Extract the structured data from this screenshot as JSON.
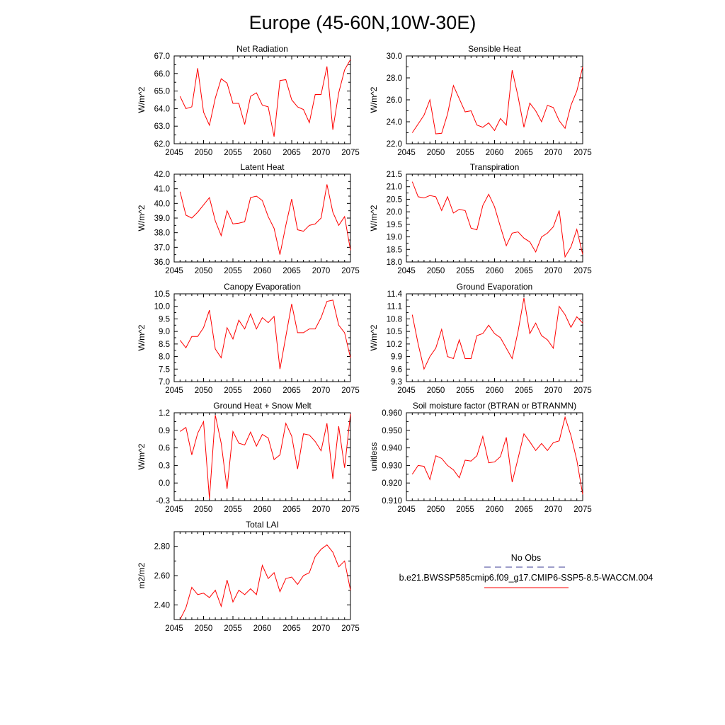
{
  "figure_title": "Europe (45-60N,10W-30E)",
  "colors": {
    "series": "#ff0000",
    "obs_line": "#3c3c96",
    "axis": "#000000"
  },
  "legend": {
    "entries": [
      {
        "label": "No Obs",
        "style": "dashed",
        "color": "#3c3c96"
      },
      {
        "label": "b.e21.BWSSP585cmip6.f09_g17.CMIP6-SSP5-8.5-WACCM.004",
        "style": "solid",
        "color": "#ff0000"
      }
    ]
  },
  "chart_data": [
    {
      "type": "line",
      "title": "Net Radiation",
      "ylabel": "W/m^2",
      "xlim": [
        2045,
        2075
      ],
      "ylim": [
        62.0,
        67.0
      ],
      "yticks": [
        "62.0",
        "63.0",
        "64.0",
        "65.0",
        "66.0",
        "67.0"
      ],
      "xticks": [
        "2045",
        "2050",
        "2055",
        "2060",
        "2065",
        "2070",
        "2075"
      ],
      "x": [
        2046,
        2047,
        2048,
        2049,
        2050,
        2051,
        2052,
        2053,
        2054,
        2055,
        2056,
        2057,
        2058,
        2059,
        2060,
        2061,
        2062,
        2063,
        2064,
        2065,
        2066,
        2067,
        2068,
        2069,
        2070,
        2071,
        2072,
        2073,
        2074,
        2075
      ],
      "series": [
        {
          "values": [
            64.7,
            64.0,
            64.1,
            66.3,
            63.8,
            63.05,
            64.6,
            65.7,
            65.45,
            64.3,
            64.3,
            63.1,
            64.7,
            64.9,
            64.2,
            64.1,
            62.4,
            65.6,
            65.65,
            64.5,
            64.1,
            63.95,
            63.2,
            64.8,
            64.8,
            66.4,
            62.8,
            64.9,
            66.2,
            66.8
          ]
        }
      ]
    },
    {
      "type": "line",
      "title": "Sensible Heat",
      "ylabel": "W/m^2",
      "xlim": [
        2045,
        2075
      ],
      "ylim": [
        22.0,
        30.0
      ],
      "yticks": [
        "22.0",
        "24.0",
        "26.0",
        "28.0",
        "30.0"
      ],
      "xticks": [
        "2045",
        "2050",
        "2055",
        "2060",
        "2065",
        "2070",
        "2075"
      ],
      "x": [
        2046,
        2047,
        2048,
        2049,
        2050,
        2051,
        2052,
        2053,
        2054,
        2055,
        2056,
        2057,
        2058,
        2059,
        2060,
        2061,
        2062,
        2063,
        2064,
        2065,
        2066,
        2067,
        2068,
        2069,
        2070,
        2071,
        2072,
        2073,
        2074,
        2075
      ],
      "series": [
        {
          "values": [
            23.0,
            23.8,
            24.6,
            26.0,
            22.9,
            22.95,
            24.7,
            27.3,
            26.1,
            24.9,
            25.0,
            23.7,
            23.5,
            23.9,
            23.2,
            24.3,
            23.7,
            28.7,
            26.3,
            23.5,
            25.7,
            25.0,
            24.0,
            25.5,
            25.3,
            24.1,
            23.4,
            25.5,
            26.8,
            29.0
          ]
        }
      ]
    },
    {
      "type": "line",
      "title": "Latent Heat",
      "ylabel": "W/m^2",
      "xlim": [
        2045,
        2075
      ],
      "ylim": [
        36.0,
        42.0
      ],
      "yticks": [
        "36.0",
        "37.0",
        "38.0",
        "39.0",
        "40.0",
        "41.0",
        "42.0"
      ],
      "xticks": [
        "2045",
        "2050",
        "2055",
        "2060",
        "2065",
        "2070",
        "2075"
      ],
      "x": [
        2046,
        2047,
        2048,
        2049,
        2050,
        2051,
        2052,
        2053,
        2054,
        2055,
        2056,
        2057,
        2058,
        2059,
        2060,
        2061,
        2062,
        2063,
        2064,
        2065,
        2066,
        2067,
        2068,
        2069,
        2070,
        2071,
        2072,
        2073,
        2074,
        2075
      ],
      "series": [
        {
          "values": [
            40.8,
            39.2,
            39.0,
            39.4,
            39.9,
            40.4,
            38.8,
            37.8,
            39.5,
            38.6,
            38.65,
            38.75,
            40.4,
            40.5,
            40.2,
            39.1,
            38.3,
            36.5,
            38.5,
            40.3,
            38.2,
            38.1,
            38.5,
            38.6,
            39.0,
            41.3,
            39.4,
            38.5,
            39.1,
            36.8
          ]
        }
      ]
    },
    {
      "type": "line",
      "title": "Transpiration",
      "ylabel": "W/m^2",
      "xlim": [
        2045,
        2075
      ],
      "ylim": [
        18.0,
        21.5
      ],
      "yticks": [
        "18.0",
        "18.5",
        "19.0",
        "19.5",
        "20.0",
        "20.5",
        "21.0",
        "21.5"
      ],
      "xticks": [
        "2045",
        "2050",
        "2055",
        "2060",
        "2065",
        "2070",
        "2075"
      ],
      "x": [
        2046,
        2047,
        2048,
        2049,
        2050,
        2051,
        2052,
        2053,
        2054,
        2055,
        2056,
        2057,
        2058,
        2059,
        2060,
        2061,
        2062,
        2063,
        2064,
        2065,
        2066,
        2067,
        2068,
        2069,
        2070,
        2071,
        2072,
        2073,
        2074,
        2075
      ],
      "series": [
        {
          "values": [
            21.2,
            20.6,
            20.55,
            20.65,
            20.6,
            20.05,
            20.6,
            19.95,
            20.1,
            20.05,
            19.35,
            19.28,
            20.25,
            20.7,
            20.2,
            19.4,
            18.65,
            19.15,
            19.2,
            18.95,
            18.8,
            18.4,
            19.0,
            19.15,
            19.4,
            20.05,
            18.2,
            18.6,
            19.3,
            18.3
          ]
        }
      ]
    },
    {
      "type": "line",
      "title": "Canopy Evaporation",
      "ylabel": "W/m^2",
      "xlim": [
        2045,
        2075
      ],
      "ylim": [
        7.0,
        10.5
      ],
      "yticks": [
        "7.0",
        "7.5",
        "8.0",
        "8.5",
        "9.0",
        "9.5",
        "10.0",
        "10.5"
      ],
      "xticks": [
        "2045",
        "2050",
        "2055",
        "2060",
        "2065",
        "2070",
        "2075"
      ],
      "x": [
        2046,
        2047,
        2048,
        2049,
        2050,
        2051,
        2052,
        2053,
        2054,
        2055,
        2056,
        2057,
        2058,
        2059,
        2060,
        2061,
        2062,
        2063,
        2064,
        2065,
        2066,
        2067,
        2068,
        2069,
        2070,
        2071,
        2072,
        2073,
        2074,
        2075
      ],
      "series": [
        {
          "values": [
            8.65,
            8.35,
            8.8,
            8.8,
            9.15,
            9.85,
            8.3,
            7.95,
            9.15,
            8.7,
            9.45,
            9.1,
            9.7,
            9.1,
            9.55,
            9.35,
            9.6,
            7.5,
            8.8,
            10.1,
            8.95,
            8.95,
            9.1,
            9.1,
            9.55,
            10.2,
            10.25,
            9.25,
            8.95,
            7.95
          ]
        }
      ]
    },
    {
      "type": "line",
      "title": "Ground Evaporation",
      "ylabel": "W/m^2",
      "xlim": [
        2045,
        2075
      ],
      "ylim": [
        9.3,
        11.4
      ],
      "yticks": [
        "9.3",
        "9.6",
        "9.9",
        "10.2",
        "10.5",
        "10.8",
        "11.1",
        "11.4"
      ],
      "xticks": [
        "2045",
        "2050",
        "2055",
        "2060",
        "2065",
        "2070",
        "2075"
      ],
      "x": [
        2046,
        2047,
        2048,
        2049,
        2050,
        2051,
        2052,
        2053,
        2054,
        2055,
        2056,
        2057,
        2058,
        2059,
        2060,
        2061,
        2062,
        2063,
        2064,
        2065,
        2066,
        2067,
        2068,
        2069,
        2070,
        2071,
        2072,
        2073,
        2074,
        2075
      ],
      "series": [
        {
          "values": [
            10.9,
            10.2,
            9.6,
            9.9,
            10.1,
            10.55,
            9.9,
            9.85,
            10.3,
            9.85,
            9.85,
            10.4,
            10.45,
            10.65,
            10.45,
            10.35,
            10.1,
            9.85,
            10.5,
            11.3,
            10.45,
            10.7,
            10.4,
            10.3,
            10.1,
            11.1,
            10.9,
            10.6,
            10.85,
            10.7
          ]
        }
      ]
    },
    {
      "type": "line",
      "title": "Ground Heat + Snow Melt",
      "ylabel": "W/m^2",
      "xlim": [
        2045,
        2075
      ],
      "ylim": [
        -0.3,
        1.2
      ],
      "yticks": [
        "-0.3",
        "0.0",
        "0.3",
        "0.6",
        "0.9",
        "1.2"
      ],
      "xticks": [
        "2045",
        "2050",
        "2055",
        "2060",
        "2065",
        "2070",
        "2075"
      ],
      "x": [
        2046,
        2047,
        2048,
        2049,
        2050,
        2051,
        2052,
        2053,
        2054,
        2055,
        2056,
        2057,
        2058,
        2059,
        2060,
        2061,
        2062,
        2063,
        2064,
        2065,
        2066,
        2067,
        2068,
        2069,
        2070,
        2071,
        2072,
        2073,
        2074,
        2075
      ],
      "series": [
        {
          "values": [
            0.88,
            0.95,
            0.48,
            0.85,
            1.05,
            -0.27,
            1.16,
            0.68,
            -0.1,
            0.88,
            0.68,
            0.65,
            0.87,
            0.63,
            0.83,
            0.77,
            0.4,
            0.48,
            1.02,
            0.8,
            0.24,
            0.84,
            0.82,
            0.71,
            0.55,
            1.02,
            0.07,
            0.97,
            0.26,
            1.18
          ]
        }
      ]
    },
    {
      "type": "line",
      "title": "Soil moisture factor (BTRAN or BTRANMN)",
      "ylabel": "unitless",
      "xlim": [
        2045,
        2075
      ],
      "ylim": [
        0.91,
        0.96
      ],
      "yticks": [
        "0.910",
        "0.920",
        "0.930",
        "0.940",
        "0.950",
        "0.960"
      ],
      "xticks": [
        "2045",
        "2050",
        "2055",
        "2060",
        "2065",
        "2070",
        "2075"
      ],
      "x": [
        2046,
        2047,
        2048,
        2049,
        2050,
        2051,
        2052,
        2053,
        2054,
        2055,
        2056,
        2057,
        2058,
        2059,
        2060,
        2061,
        2062,
        2063,
        2064,
        2065,
        2066,
        2067,
        2068,
        2069,
        2070,
        2071,
        2072,
        2073,
        2074,
        2075
      ],
      "series": [
        {
          "values": [
            0.925,
            0.93,
            0.9295,
            0.922,
            0.9355,
            0.934,
            0.93,
            0.9275,
            0.923,
            0.933,
            0.9325,
            0.9355,
            0.9465,
            0.9315,
            0.932,
            0.935,
            0.946,
            0.9205,
            0.934,
            0.948,
            0.9435,
            0.9385,
            0.9425,
            0.9385,
            0.943,
            0.944,
            0.9575,
            0.947,
            0.933,
            0.9135
          ]
        }
      ]
    },
    {
      "type": "line",
      "title": "Total LAI",
      "ylabel": "m2/m2",
      "xlim": [
        2045,
        2075
      ],
      "ylim": [
        2.3,
        2.9
      ],
      "yticks": [
        "2.40",
        "2.60",
        "2.80"
      ],
      "xticks": [
        "2045",
        "2050",
        "2055",
        "2060",
        "2065",
        "2070",
        "2075"
      ],
      "x": [
        2046,
        2047,
        2048,
        2049,
        2050,
        2051,
        2052,
        2053,
        2054,
        2055,
        2056,
        2057,
        2058,
        2059,
        2060,
        2061,
        2062,
        2063,
        2064,
        2065,
        2066,
        2067,
        2068,
        2069,
        2070,
        2071,
        2072,
        2073,
        2074,
        2075
      ],
      "series": [
        {
          "values": [
            2.3,
            2.38,
            2.52,
            2.47,
            2.48,
            2.45,
            2.5,
            2.39,
            2.57,
            2.42,
            2.5,
            2.47,
            2.51,
            2.47,
            2.67,
            2.58,
            2.62,
            2.49,
            2.58,
            2.59,
            2.54,
            2.6,
            2.62,
            2.73,
            2.78,
            2.81,
            2.76,
            2.66,
            2.7,
            2.5
          ]
        }
      ]
    }
  ]
}
